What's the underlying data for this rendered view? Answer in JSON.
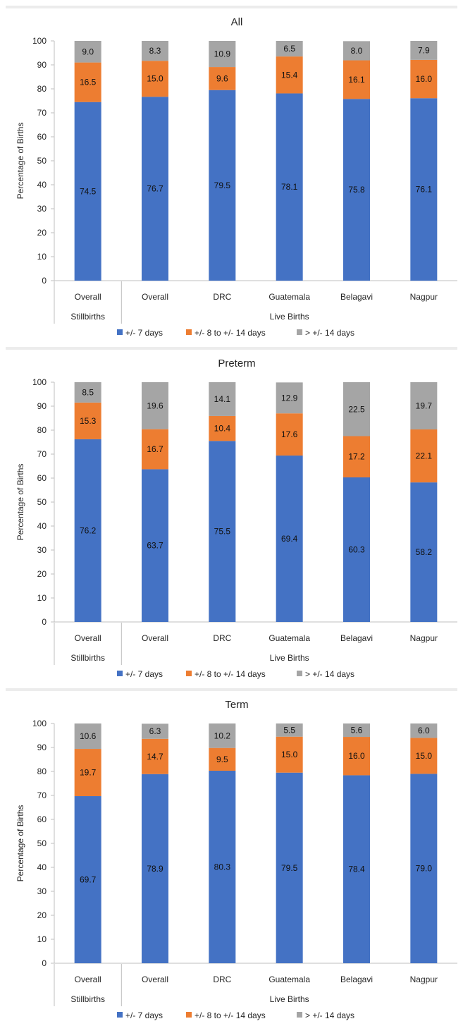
{
  "legend": [
    "+/- 7 days",
    "+/- 8 to +/- 14 days",
    "> +/- 14 days"
  ],
  "colors": [
    "#4472C4",
    "#ED7D31",
    "#A5A5A5"
  ],
  "ylabel": "Percentage of Births",
  "yticks": [
    "0",
    "10",
    "20",
    "30",
    "40",
    "50",
    "60",
    "70",
    "80",
    "90",
    "100"
  ],
  "categories": [
    "Overall",
    "Overall",
    "DRC",
    "Guatemala",
    "Belagavi",
    "Nagpur"
  ],
  "groups": [
    {
      "label": "Stillbirths",
      "count": 1
    },
    {
      "label": "Live Births",
      "count": 5
    }
  ],
  "chart_data": [
    {
      "type": "bar",
      "stacked": true,
      "title": "All",
      "ylabel": "Percentage of Births",
      "ylim": [
        0,
        100
      ],
      "grid": false,
      "legend_position": "bottom",
      "categories": [
        "Overall",
        "Overall",
        "DRC",
        "Guatemala",
        "Belagavi",
        "Nagpur"
      ],
      "series": [
        {
          "name": "+/- 7 days",
          "values": [
            74.5,
            76.7,
            79.5,
            78.1,
            75.8,
            76.1
          ]
        },
        {
          "name": "+/- 8 to +/- 14 days",
          "values": [
            16.5,
            15.0,
            9.6,
            15.4,
            16.1,
            16.0
          ]
        },
        {
          "name": "> +/- 14 days",
          "values": [
            9.0,
            8.3,
            10.9,
            6.5,
            8.0,
            7.9
          ]
        }
      ]
    },
    {
      "type": "bar",
      "stacked": true,
      "title": "Preterm",
      "ylabel": "Percentage of Births",
      "ylim": [
        0,
        100
      ],
      "grid": false,
      "legend_position": "bottom",
      "categories": [
        "Overall",
        "Overall",
        "DRC",
        "Guatemala",
        "Belagavi",
        "Nagpur"
      ],
      "series": [
        {
          "name": "+/- 7 days",
          "values": [
            76.2,
            63.7,
            75.5,
            69.4,
            60.3,
            58.2
          ]
        },
        {
          "name": "+/- 8 to +/- 14 days",
          "values": [
            15.3,
            16.7,
            10.4,
            17.6,
            17.2,
            22.1
          ]
        },
        {
          "name": "> +/- 14 days",
          "values": [
            8.5,
            19.6,
            14.1,
            12.9,
            22.5,
            19.7
          ]
        }
      ]
    },
    {
      "type": "bar",
      "stacked": true,
      "title": "Term",
      "ylabel": "Percentage of Births",
      "ylim": [
        0,
        100
      ],
      "grid": false,
      "legend_position": "bottom",
      "categories": [
        "Overall",
        "Overall",
        "DRC",
        "Guatemala",
        "Belagavi",
        "Nagpur"
      ],
      "series": [
        {
          "name": "+/- 7 days",
          "values": [
            69.7,
            78.9,
            80.3,
            79.5,
            78.4,
            79.0
          ]
        },
        {
          "name": "+/- 8 to +/- 14 days",
          "values": [
            19.7,
            14.7,
            9.5,
            15.0,
            16.0,
            15.0
          ]
        },
        {
          "name": "> +/- 14 days",
          "values": [
            10.6,
            6.3,
            10.2,
            5.5,
            5.6,
            6.0
          ]
        }
      ]
    }
  ]
}
